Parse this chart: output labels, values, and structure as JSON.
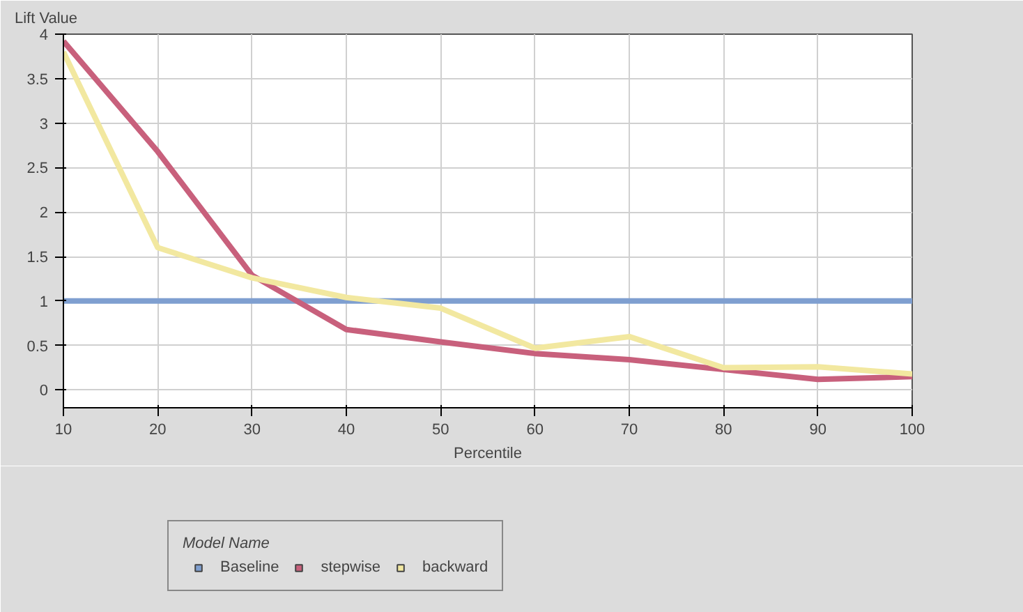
{
  "chart_data": {
    "type": "line",
    "xlabel": "Percentile",
    "ylabel": "Lift Value",
    "legend_title": "Model Name",
    "x": [
      10,
      20,
      30,
      40,
      50,
      60,
      70,
      80,
      90,
      100
    ],
    "xlim": [
      10,
      100
    ],
    "xticks": [
      10,
      20,
      30,
      40,
      50,
      60,
      70,
      80,
      90,
      100
    ],
    "ylim": [
      -0.2,
      4
    ],
    "yticks": [
      0,
      0.5,
      1,
      1.5,
      2,
      2.5,
      3,
      3.5,
      4
    ],
    "grid": true,
    "legend": "bottom",
    "marker": "none",
    "line_style": "solid",
    "series": [
      {
        "name": "Baseline",
        "color": "#7f9fd0",
        "values": [
          1,
          1,
          1,
          1,
          1,
          1,
          1,
          1,
          1,
          1
        ]
      },
      {
        "name": "stepwise",
        "color": "#c8607c",
        "values": [
          3.92,
          2.68,
          1.29,
          0.68,
          0.54,
          0.41,
          0.34,
          0.23,
          0.12,
          0.15
        ]
      },
      {
        "name": "backward",
        "color": "#f2e8a0",
        "values": [
          3.8,
          1.6,
          1.26,
          1.04,
          0.92,
          0.47,
          0.6,
          0.25,
          0.26,
          0.18
        ]
      }
    ]
  }
}
